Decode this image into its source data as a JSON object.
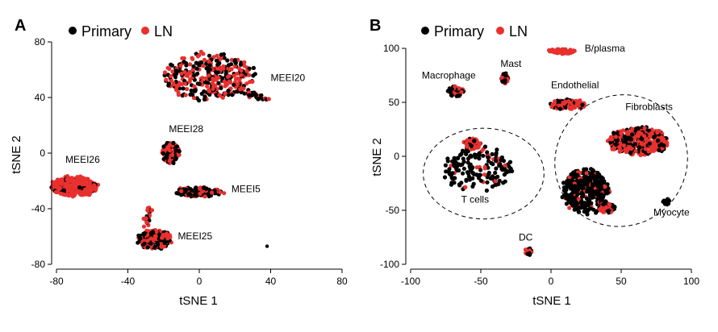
{
  "colors": {
    "primary": "#000000",
    "ln": "#e8312f"
  },
  "chart_data": [
    {
      "panel": "A",
      "type": "scatter",
      "legend": [
        {
          "name": "Primary",
          "color": "#000000"
        },
        {
          "name": "LN",
          "color": "#e8312f"
        }
      ],
      "xlabel": "tSNE 1",
      "ylabel": "tSNE 2",
      "xlim": [
        -80,
        80
      ],
      "ylim": [
        -80,
        80
      ],
      "xticks": [
        -80,
        -40,
        0,
        40,
        80
      ],
      "yticks": [
        -80,
        -40,
        0,
        40,
        80
      ],
      "clusters": [
        {
          "label": "MEEI20",
          "label_x": 40,
          "label_y": 52,
          "cx": 5,
          "cy": 55,
          "rx": 26,
          "ry": 17,
          "n": 380,
          "ln_frac": 0.55,
          "tail": {
            "x": [
              20,
              38
            ],
            "y": [
              48,
              38
            ]
          }
        },
        {
          "label": "MEEI28",
          "label_x": -17,
          "label_y": 15,
          "cx": -16,
          "cy": 0,
          "rx": 5,
          "ry": 8,
          "n": 110,
          "ln_frac": 0.5
        },
        {
          "label": "MEEI26",
          "label_x": -75,
          "label_y": -7,
          "cx": -70,
          "cy": -24,
          "rx": 13,
          "ry": 7,
          "n": 420,
          "ln_frac": 0.85
        },
        {
          "label": "MEEI5",
          "label_x": 18,
          "label_y": -28,
          "cx": 0,
          "cy": -28,
          "rx": 13,
          "ry": 3.5,
          "n": 150,
          "ln_frac": 0.5
        },
        {
          "label": "MEEI25",
          "label_x": -12,
          "label_y": -62,
          "cx": -25,
          "cy": -62,
          "rx": 10,
          "ry": 7,
          "n": 260,
          "ln_frac": 0.4,
          "tail": {
            "x": [
              -30,
              -28
            ],
            "y": [
              -52,
              -40
            ]
          }
        }
      ],
      "outliers": [
        {
          "x": 38,
          "y": -67,
          "group": "Primary"
        }
      ]
    },
    {
      "panel": "B",
      "type": "scatter",
      "legend": [
        {
          "name": "Primary",
          "color": "#000000"
        },
        {
          "name": "LN",
          "color": "#e8312f"
        }
      ],
      "xlabel": "tSNE 1",
      "ylabel": "tSNE 2",
      "xlim": [
        -100,
        100
      ],
      "ylim": [
        -100,
        100
      ],
      "xticks": [
        -100,
        -50,
        0,
        50,
        100
      ],
      "yticks": [
        -100,
        -50,
        0,
        50,
        100
      ],
      "clusters": [
        {
          "label": "B/plasma",
          "label_x": 24,
          "label_y": 97,
          "cx": 8,
          "cy": 97,
          "rx": 11,
          "ry": 2.5,
          "n": 70,
          "ln_frac": 0.95
        },
        {
          "label": "Mast",
          "label_x": -36,
          "label_y": 83,
          "cx": -33,
          "cy": 72,
          "rx": 2.5,
          "ry": 5,
          "n": 35,
          "ln_frac": 0.5
        },
        {
          "label": "Macrophage",
          "label_x": -92,
          "label_y": 72,
          "cx": -68,
          "cy": 60,
          "rx": 6,
          "ry": 5,
          "n": 70,
          "ln_frac": 0.45
        },
        {
          "label": "Endothelial",
          "label_x": 0,
          "label_y": 63,
          "cx": 12,
          "cy": 48,
          "rx": 14,
          "ry": 5,
          "n": 110,
          "ln_frac": 0.6
        },
        {
          "label": "Fibroblasts",
          "label_x": 53,
          "label_y": 43,
          "cx": 62,
          "cy": 14,
          "rx": 22,
          "ry": 13,
          "n": 420,
          "ln_frac": 0.6
        },
        {
          "label": "",
          "cx": 25,
          "cy": -32,
          "rx": 17,
          "ry": 22,
          "n": 360,
          "ln_frac": 0.12
        },
        {
          "label": "",
          "cx": 40,
          "cy": -48,
          "rx": 6,
          "ry": 5,
          "n": 80,
          "ln_frac": 0.6
        },
        {
          "label": "T cells",
          "label_x": -64,
          "label_y": -43,
          "cx": -52,
          "cy": -12,
          "rx": 26,
          "ry": 22,
          "n": 170,
          "ln_frac": 0.12
        },
        {
          "label": "",
          "cx": -56,
          "cy": 12,
          "rx": 6,
          "ry": 5,
          "n": 60,
          "ln_frac": 0.75
        },
        {
          "label": "DC",
          "label_x": -23,
          "label_y": -78,
          "cx": -16,
          "cy": -88,
          "rx": 2.5,
          "ry": 4,
          "n": 25,
          "ln_frac": 0.4
        },
        {
          "label": "Myocyte",
          "label_x": 73,
          "label_y": -55,
          "cx": 82,
          "cy": -42,
          "rx": 2.5,
          "ry": 3,
          "n": 18,
          "ln_frac": 0.0
        }
      ],
      "hulls": [
        {
          "name": "t-cells-hull",
          "cx": -48,
          "cy": -16,
          "rx": 43,
          "ry": 42,
          "rot": 0
        },
        {
          "name": "fibroblast-hull",
          "cx": 50,
          "cy": -4,
          "rx": 48,
          "ry": 60,
          "rot": -40
        }
      ]
    }
  ]
}
